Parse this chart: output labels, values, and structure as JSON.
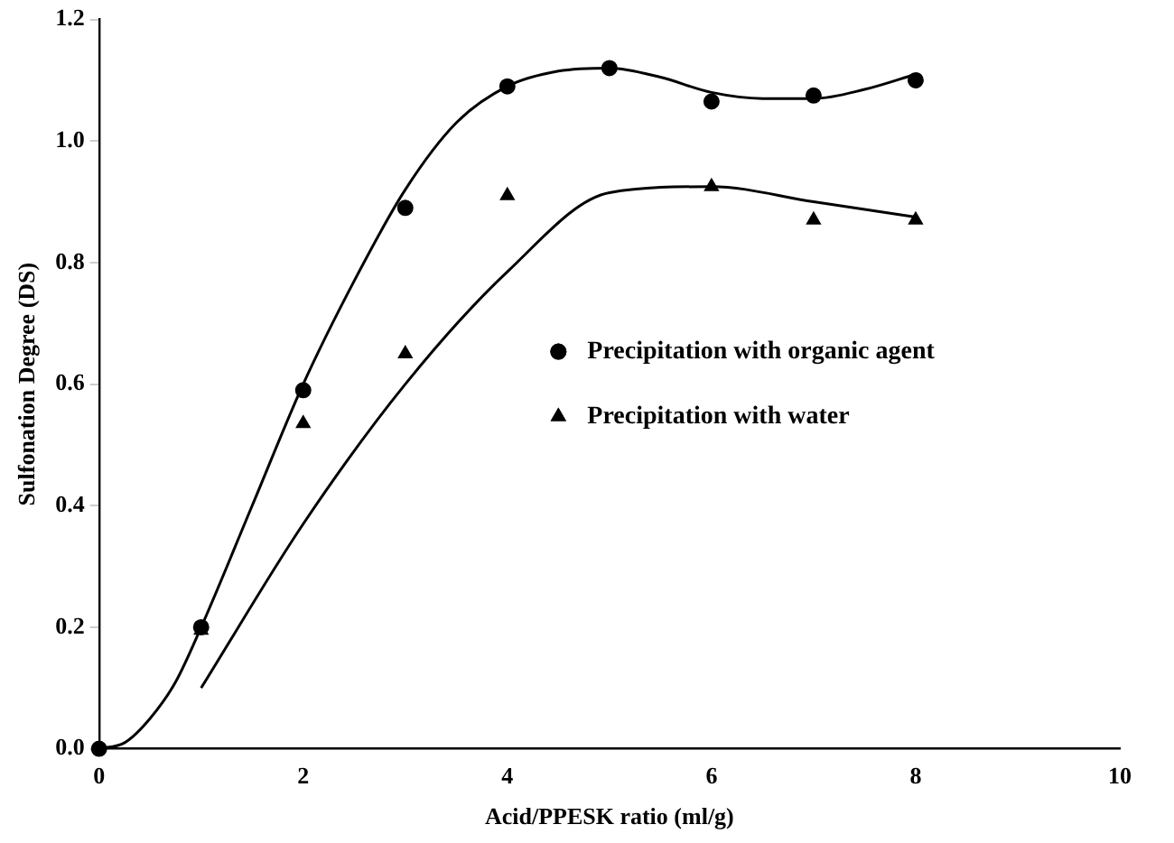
{
  "chart_data": {
    "type": "scatter",
    "xlabel": "Acid/PPESK ratio (ml/g)",
    "ylabel": "Sulfonation Degree (DS)",
    "xlim": [
      0,
      10
    ],
    "xticks": [
      0,
      2,
      4,
      6,
      8,
      10
    ],
    "ylim": [
      0,
      1.2
    ],
    "yticks": [
      {
        "value": 0,
        "label": "0.0"
      },
      {
        "value": 0.2,
        "label": "0.2"
      },
      {
        "value": 0.4,
        "label": "0.4"
      },
      {
        "value": 0.6,
        "label": "0.6"
      },
      {
        "value": 0.8,
        "label": "0.8"
      },
      {
        "value": 1,
        "label": "1.0"
      },
      {
        "value": 1.2,
        "label": "1.2"
      }
    ],
    "grid": false,
    "legend": "center",
    "series": [
      {
        "name": "Precipitation with organic agent",
        "color": "#000000",
        "marker": "circle",
        "x": [
          0,
          1,
          2,
          3,
          4,
          5,
          6,
          7,
          8
        ],
        "values": [
          0,
          0.2,
          0.59,
          0.89,
          1.09,
          1.12,
          1.065,
          1.075,
          1.1
        ]
      },
      {
        "name": "Precipitation with water",
        "color": "#000000",
        "marker": "triangle",
        "x": [
          1,
          2,
          3,
          4,
          6,
          7,
          8
        ],
        "values": [
          0.195,
          0.535,
          0.65,
          0.91,
          0.925,
          0.87,
          0.87
        ]
      },
      {
        "type": "line",
        "color": "#000000",
        "x": [
          0,
          0.25,
          0.5,
          0.75,
          1,
          1.5,
          2,
          2.5,
          3,
          3.5,
          4,
          4.5,
          5,
          5.5,
          6,
          6.5,
          7,
          7.5,
          8
        ],
        "values": [
          0,
          0.01,
          0.05,
          0.11,
          0.2,
          0.4,
          0.6,
          0.77,
          0.92,
          1.03,
          1.09,
          1.115,
          1.12,
          1.105,
          1.08,
          1.07,
          1.07,
          1.085,
          1.11
        ]
      },
      {
        "type": "line",
        "color": "#000000",
        "x": [
          1,
          2,
          3,
          4,
          5,
          6,
          7,
          8
        ],
        "values": [
          0.1,
          0.37,
          0.6,
          0.785,
          0.915,
          0.925,
          0.9,
          0.875
        ]
      }
    ]
  }
}
